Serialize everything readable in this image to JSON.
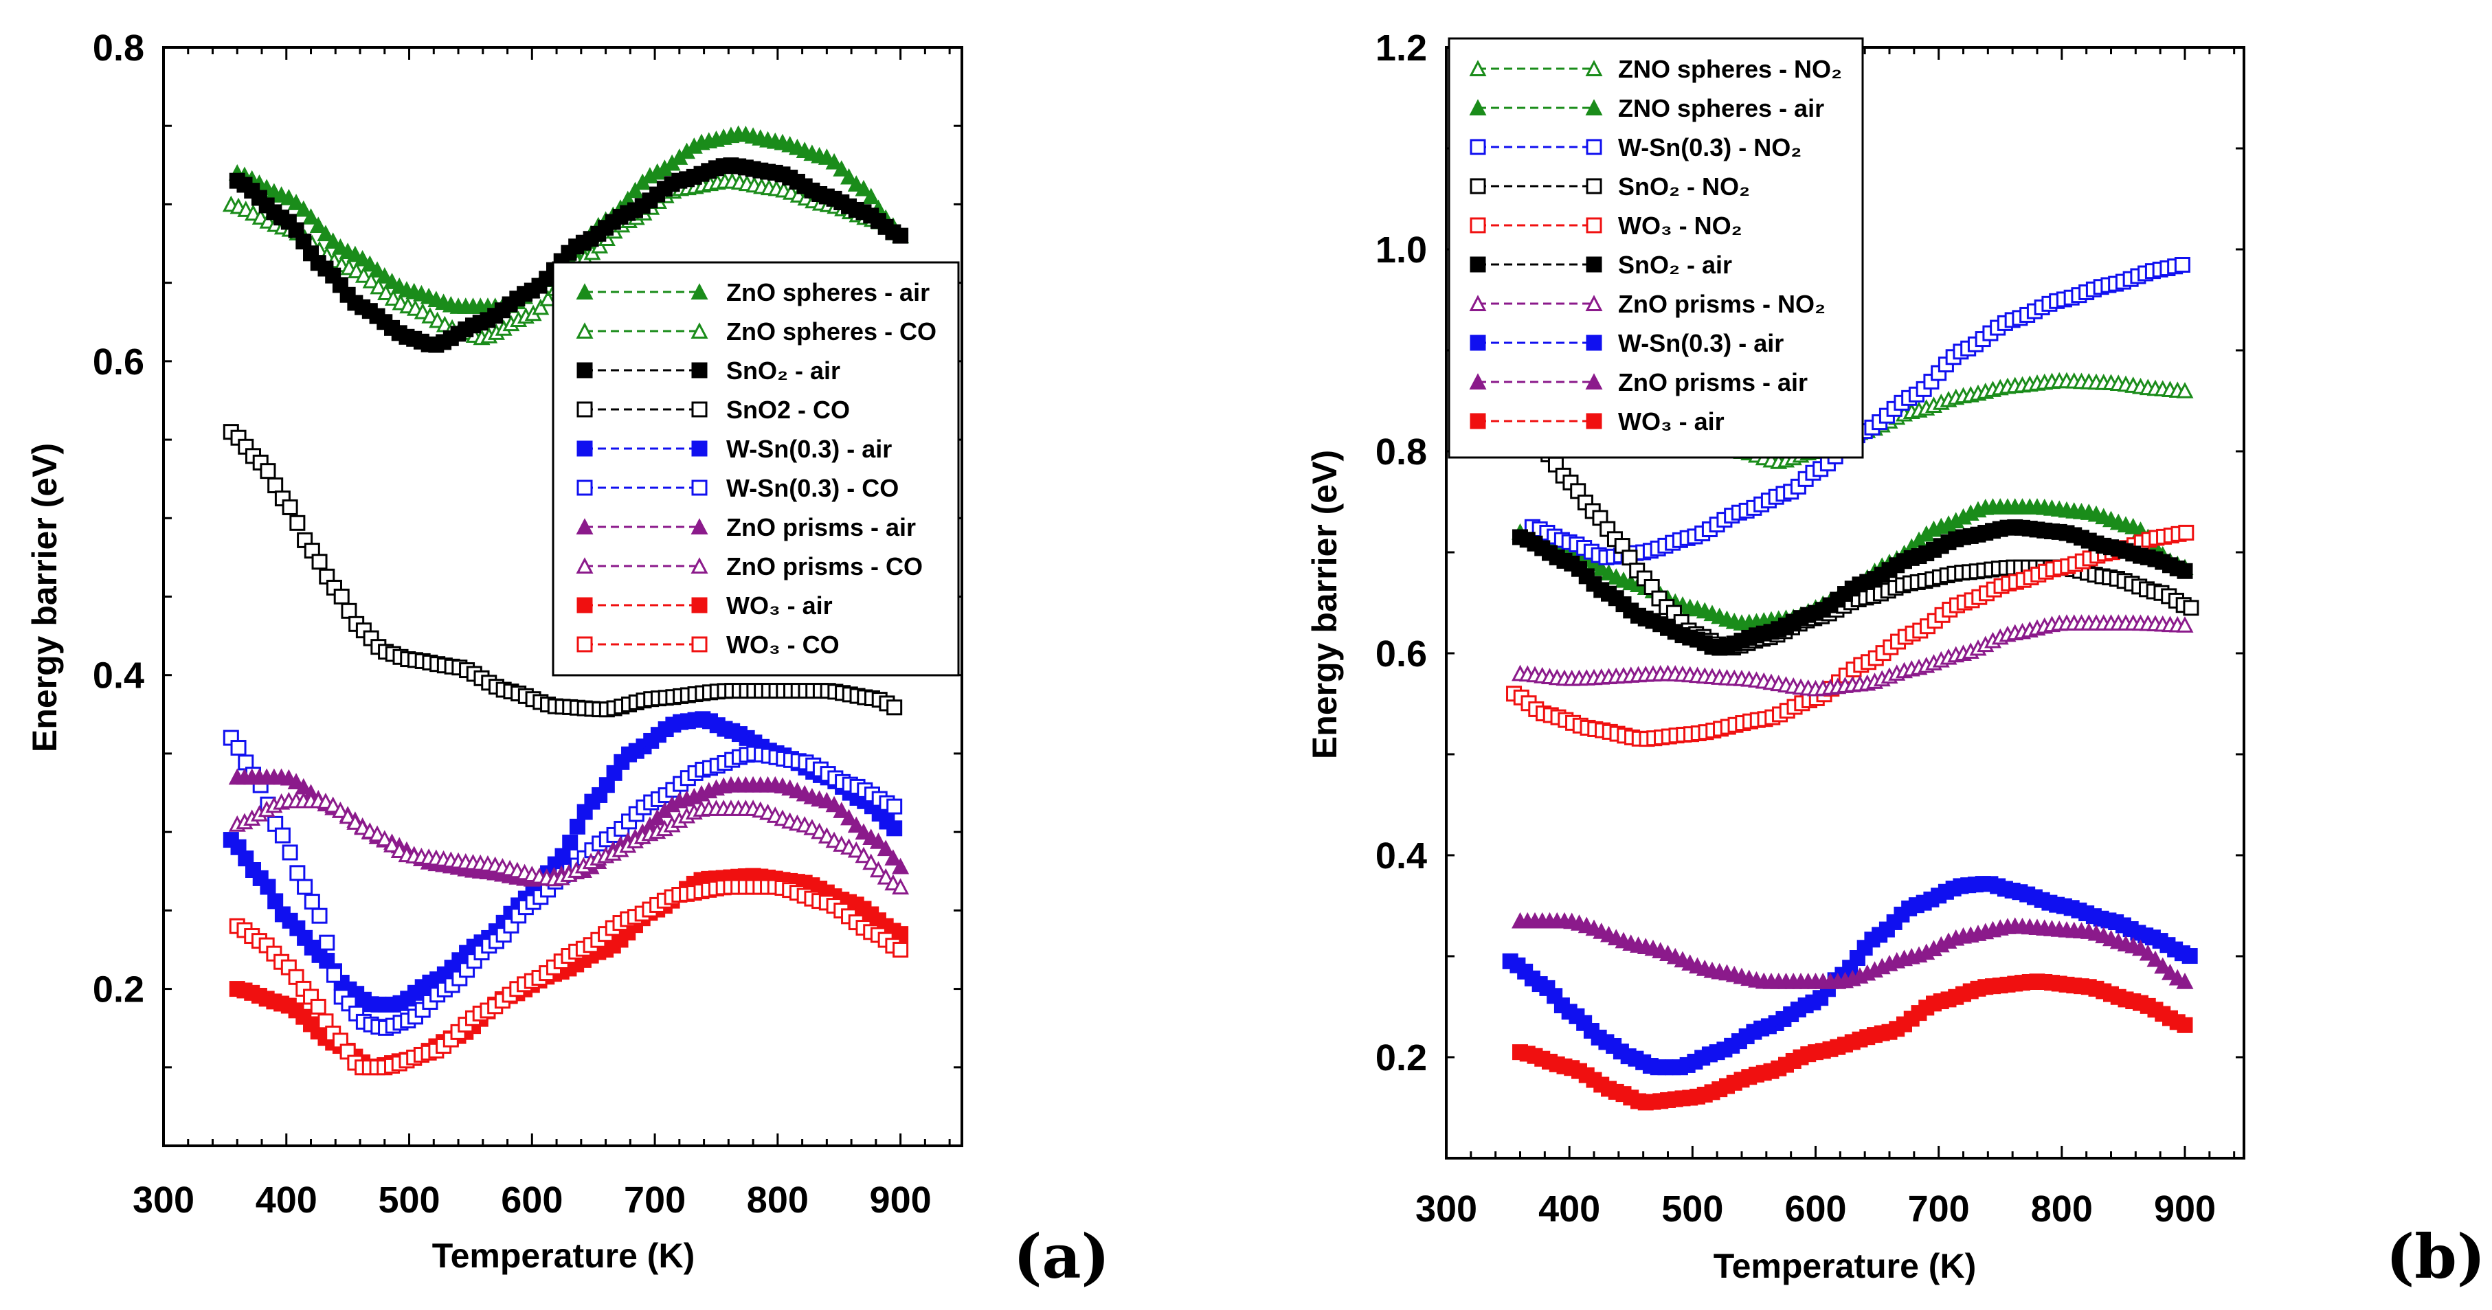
{
  "chart_data": [
    {
      "type": "scatter",
      "panel_label": "(a)",
      "xlabel": "Temperature (K)",
      "ylabel": "Energy barrier (eV)",
      "xlim": [
        300,
        950
      ],
      "ylim": [
        0.1,
        0.8
      ],
      "xticks": [
        "300",
        "400",
        "500",
        "600",
        "700",
        "800",
        "900"
      ],
      "yticks": [
        "0.2",
        "0.4",
        "0.6",
        "0.8"
      ],
      "legend_position": "upper-right",
      "series": [
        {
          "name": "ZnO spheres - air",
          "color": "#1a8c1a",
          "marker": "triangle",
          "filled": true,
          "x": [
            360,
            400,
            450,
            500,
            540,
            580,
            620,
            660,
            700,
            740,
            770,
            800,
            840,
            870,
            890,
            900
          ],
          "y": [
            0.72,
            0.705,
            0.67,
            0.645,
            0.635,
            0.635,
            0.655,
            0.69,
            0.72,
            0.74,
            0.745,
            0.74,
            0.73,
            0.71,
            0.69,
            0.68
          ]
        },
        {
          "name": "ZnO spheres - CO",
          "color": "#1a8c1a",
          "marker": "triangle",
          "filled": false,
          "x": [
            355,
            400,
            450,
            500,
            540,
            560,
            600,
            640,
            680,
            720,
            760,
            800,
            840,
            880,
            900
          ],
          "y": [
            0.7,
            0.685,
            0.66,
            0.635,
            0.62,
            0.615,
            0.63,
            0.665,
            0.69,
            0.71,
            0.715,
            0.71,
            0.7,
            0.69,
            0.68
          ]
        },
        {
          "name": "SnO₂ - air",
          "color": "#000000",
          "marker": "square",
          "filled": true,
          "x": [
            360,
            400,
            430,
            460,
            500,
            520,
            560,
            600,
            640,
            680,
            720,
            760,
            800,
            840,
            870,
            900
          ],
          "y": [
            0.715,
            0.69,
            0.66,
            0.635,
            0.615,
            0.61,
            0.625,
            0.645,
            0.675,
            0.695,
            0.715,
            0.725,
            0.72,
            0.705,
            0.695,
            0.68
          ]
        },
        {
          "name": "SnO2 - CO",
          "color": "#000000",
          "marker": "square",
          "filled": false,
          "x": [
            355,
            380,
            400,
            420,
            440,
            460,
            480,
            500,
            540,
            580,
            620,
            660,
            700,
            760,
            840,
            880,
            900
          ],
          "y": [
            0.555,
            0.535,
            0.51,
            0.48,
            0.455,
            0.43,
            0.415,
            0.41,
            0.405,
            0.39,
            0.38,
            0.378,
            0.385,
            0.39,
            0.39,
            0.385,
            0.378
          ]
        },
        {
          "name": "W-Sn(0.3) - air",
          "color": "#1010f0",
          "marker": "square",
          "filled": true,
          "x": [
            355,
            380,
            400,
            430,
            450,
            470,
            490,
            520,
            560,
            600,
            620,
            650,
            680,
            720,
            740,
            760,
            800,
            840,
            870,
            900
          ],
          "y": [
            0.295,
            0.27,
            0.245,
            0.22,
            0.2,
            0.19,
            0.19,
            0.205,
            0.23,
            0.26,
            0.28,
            0.32,
            0.35,
            0.37,
            0.372,
            0.365,
            0.35,
            0.335,
            0.32,
            0.3
          ]
        },
        {
          "name": "W-Sn(0.3) - CO",
          "color": "#1010f0",
          "marker": "square",
          "filled": false,
          "x": [
            355,
            375,
            395,
            415,
            425,
            445,
            465,
            480,
            500,
            530,
            570,
            600,
            630,
            660,
            700,
            740,
            780,
            820,
            860,
            900
          ],
          "y": [
            0.36,
            0.335,
            0.3,
            0.265,
            0.25,
            0.195,
            0.178,
            0.175,
            0.18,
            0.2,
            0.23,
            0.255,
            0.275,
            0.295,
            0.32,
            0.34,
            0.35,
            0.345,
            0.33,
            0.315
          ]
        },
        {
          "name": "ZnO prisms - air",
          "color": "#8b1a8b",
          "marker": "triangle",
          "filled": true,
          "x": [
            360,
            400,
            440,
            480,
            520,
            560,
            600,
            640,
            680,
            720,
            760,
            800,
            840,
            880,
            905
          ],
          "y": [
            0.335,
            0.335,
            0.315,
            0.295,
            0.28,
            0.275,
            0.27,
            0.275,
            0.295,
            0.32,
            0.33,
            0.33,
            0.32,
            0.295,
            0.275
          ]
        },
        {
          "name": "ZnO prisms - CO",
          "color": "#8b1a8b",
          "marker": "triangle",
          "filled": false,
          "x": [
            360,
            400,
            430,
            470,
            500,
            560,
            620,
            660,
            700,
            740,
            780,
            820,
            860,
            900
          ],
          "y": [
            0.305,
            0.32,
            0.32,
            0.3,
            0.285,
            0.28,
            0.27,
            0.285,
            0.3,
            0.315,
            0.315,
            0.305,
            0.29,
            0.265
          ]
        },
        {
          "name": "WO₃ - air",
          "color": "#f01010",
          "marker": "square",
          "filled": true,
          "x": [
            360,
            400,
            440,
            470,
            500,
            540,
            580,
            620,
            660,
            700,
            740,
            780,
            820,
            860,
            900
          ],
          "y": [
            0.2,
            0.19,
            0.165,
            0.15,
            0.155,
            0.17,
            0.195,
            0.21,
            0.225,
            0.25,
            0.27,
            0.272,
            0.268,
            0.255,
            0.235
          ]
        },
        {
          "name": "WO₃ - CO",
          "color": "#f01010",
          "marker": "square",
          "filled": false,
          "x": [
            360,
            380,
            400,
            420,
            440,
            460,
            480,
            520,
            560,
            600,
            640,
            680,
            720,
            760,
            800,
            840,
            880,
            900
          ],
          "y": [
            0.24,
            0.23,
            0.215,
            0.195,
            0.17,
            0.15,
            0.15,
            0.16,
            0.185,
            0.205,
            0.225,
            0.245,
            0.26,
            0.265,
            0.265,
            0.255,
            0.235,
            0.225
          ]
        }
      ]
    },
    {
      "type": "scatter",
      "panel_label": "(b)",
      "xlabel": "Temperature (K)",
      "ylabel": "Energy barrier (eV)",
      "xlim": [
        300,
        948
      ],
      "ylim": [
        0.1,
        1.2
      ],
      "xticks": [
        "300",
        "400",
        "500",
        "600",
        "700",
        "800",
        "900"
      ],
      "yticks": [
        "0.2",
        "0.4",
        "0.6",
        "0.8",
        "1.0",
        "1.2"
      ],
      "legend_position": "upper-left",
      "series": [
        {
          "name": "ZNO spheres - NO₂",
          "color": "#1a8c1a",
          "marker": "triangle",
          "filled": false,
          "x": [
            480,
            520,
            540,
            570,
            600,
            640,
            680,
            720,
            760,
            800,
            840,
            880,
            900
          ],
          "y": [
            0.83,
            0.81,
            0.8,
            0.79,
            0.8,
            0.82,
            0.84,
            0.855,
            0.865,
            0.87,
            0.868,
            0.862,
            0.86
          ]
        },
        {
          "name": "ZNO spheres - air",
          "color": "#1a8c1a",
          "marker": "triangle",
          "filled": true,
          "x": [
            360,
            400,
            450,
            500,
            540,
            580,
            620,
            660,
            700,
            740,
            780,
            820,
            860,
            890,
            900
          ],
          "y": [
            0.72,
            0.7,
            0.67,
            0.645,
            0.63,
            0.635,
            0.655,
            0.69,
            0.725,
            0.745,
            0.745,
            0.74,
            0.725,
            0.69,
            0.685
          ]
        },
        {
          "name": "W-Sn(0.3) - NO₂",
          "color": "#1010f0",
          "marker": "square",
          "filled": false,
          "x": [
            370,
            400,
            430,
            460,
            500,
            540,
            580,
            600,
            640,
            680,
            720,
            760,
            800,
            840,
            880,
            900
          ],
          "y": [
            0.725,
            0.71,
            0.695,
            0.7,
            0.715,
            0.74,
            0.76,
            0.78,
            0.82,
            0.855,
            0.9,
            0.93,
            0.95,
            0.965,
            0.98,
            0.985
          ]
        },
        {
          "name": "SnO₂ - NO₂",
          "color": "#000000",
          "marker": "square",
          "filled": false,
          "x": [
            365,
            380,
            400,
            420,
            440,
            460,
            480,
            500,
            530,
            560,
            600,
            640,
            680,
            720,
            760,
            800,
            840,
            880,
            905
          ],
          "y": [
            0.81,
            0.8,
            0.77,
            0.74,
            0.71,
            0.675,
            0.645,
            0.62,
            0.605,
            0.615,
            0.635,
            0.655,
            0.67,
            0.68,
            0.685,
            0.685,
            0.675,
            0.66,
            0.645
          ]
        },
        {
          "name": "WO₃ - NO₂",
          "color": "#f01010",
          "marker": "square",
          "filled": false,
          "x": [
            355,
            380,
            420,
            460,
            500,
            560,
            600,
            640,
            680,
            720,
            760,
            800,
            840,
            880,
            905
          ],
          "y": [
            0.56,
            0.54,
            0.525,
            0.515,
            0.52,
            0.535,
            0.555,
            0.59,
            0.62,
            0.65,
            0.67,
            0.685,
            0.7,
            0.715,
            0.72
          ]
        },
        {
          "name": "SnO₂ - air",
          "color": "#000000",
          "marker": "square",
          "filled": true,
          "x": [
            360,
            400,
            430,
            460,
            500,
            520,
            560,
            600,
            640,
            680,
            720,
            760,
            800,
            840,
            870,
            905
          ],
          "y": [
            0.715,
            0.69,
            0.66,
            0.635,
            0.615,
            0.605,
            0.62,
            0.64,
            0.67,
            0.695,
            0.715,
            0.725,
            0.72,
            0.705,
            0.695,
            0.68
          ]
        },
        {
          "name": "ZnO prisms - NO₂",
          "color": "#8b1a8b",
          "marker": "triangle",
          "filled": false,
          "x": [
            360,
            400,
            480,
            540,
            600,
            640,
            680,
            720,
            760,
            800,
            860,
            900
          ],
          "y": [
            0.58,
            0.575,
            0.58,
            0.575,
            0.565,
            0.57,
            0.585,
            0.6,
            0.62,
            0.63,
            0.63,
            0.628
          ]
        },
        {
          "name": "W-Sn(0.3) - air",
          "color": "#1010f0",
          "marker": "square",
          "filled": true,
          "x": [
            352,
            380,
            400,
            430,
            450,
            470,
            490,
            520,
            560,
            600,
            620,
            650,
            680,
            720,
            740,
            760,
            800,
            840,
            870,
            905
          ],
          "y": [
            0.295,
            0.27,
            0.245,
            0.215,
            0.2,
            0.19,
            0.19,
            0.205,
            0.23,
            0.255,
            0.28,
            0.32,
            0.35,
            0.37,
            0.372,
            0.365,
            0.35,
            0.335,
            0.32,
            0.3
          ]
        },
        {
          "name": "ZnO prisms - air",
          "color": "#8b1a8b",
          "marker": "triangle",
          "filled": true,
          "x": [
            360,
            400,
            460,
            520,
            560,
            620,
            680,
            720,
            760,
            820,
            860,
            900
          ],
          "y": [
            0.335,
            0.335,
            0.31,
            0.285,
            0.275,
            0.275,
            0.3,
            0.32,
            0.33,
            0.325,
            0.31,
            0.275
          ]
        },
        {
          "name": "WO₃ - air",
          "color": "#f01010",
          "marker": "square",
          "filled": true,
          "x": [
            360,
            400,
            440,
            460,
            500,
            560,
            600,
            660,
            700,
            740,
            780,
            820,
            860,
            905
          ],
          "y": [
            0.205,
            0.19,
            0.165,
            0.155,
            0.16,
            0.185,
            0.205,
            0.225,
            0.255,
            0.27,
            0.275,
            0.27,
            0.255,
            0.23
          ]
        }
      ]
    }
  ]
}
